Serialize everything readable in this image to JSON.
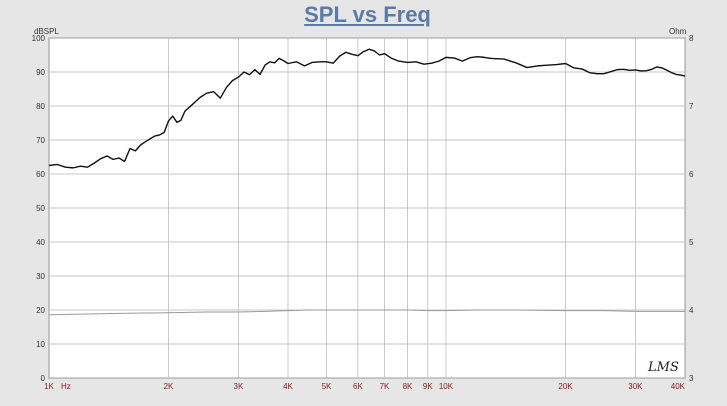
{
  "chart_data": {
    "type": "line",
    "title": "SPL vs Freq",
    "y_left_label": "dBSPL",
    "y_right_label": "Ohm",
    "x_unit": "Hz",
    "xlim": [
      1000,
      40000
    ],
    "ylim_left": [
      0,
      100
    ],
    "ylim_right": [
      3,
      8
    ],
    "x_scale": "log",
    "grid": true,
    "x_ticks": [
      {
        "v": 1000,
        "label": "1K"
      },
      {
        "v": 2000,
        "label": "2K"
      },
      {
        "v": 3000,
        "label": "3K"
      },
      {
        "v": 4000,
        "label": "4K"
      },
      {
        "v": 5000,
        "label": "5K"
      },
      {
        "v": 6000,
        "label": "6K"
      },
      {
        "v": 7000,
        "label": "7K"
      },
      {
        "v": 8000,
        "label": "8K"
      },
      {
        "v": 9000,
        "label": "9K"
      },
      {
        "v": 10000,
        "label": "10K"
      },
      {
        "v": 20000,
        "label": "20K"
      },
      {
        "v": 30000,
        "label": "30K"
      },
      {
        "v": 40000,
        "label": "40K"
      }
    ],
    "y_left_ticks": [
      0,
      10,
      20,
      30,
      40,
      50,
      60,
      70,
      80,
      90,
      100
    ],
    "y_right_ticks": [
      3,
      4,
      5,
      6,
      7,
      8
    ],
    "series": [
      {
        "axis": "left",
        "color": "#111111",
        "x": [
          1000,
          1050,
          1100,
          1150,
          1200,
          1250,
          1300,
          1350,
          1400,
          1450,
          1500,
          1550,
          1600,
          1650,
          1700,
          1750,
          1800,
          1850,
          1900,
          1950,
          2000,
          2050,
          2100,
          2150,
          2200,
          2300,
          2400,
          2500,
          2600,
          2700,
          2800,
          2900,
          3000,
          3100,
          3200,
          3300,
          3400,
          3500,
          3600,
          3700,
          3800,
          3900,
          4000,
          4200,
          4400,
          4600,
          4800,
          5000,
          5200,
          5400,
          5600,
          5800,
          6000,
          6200,
          6400,
          6600,
          6800,
          7000,
          7300,
          7600,
          8000,
          8400,
          8800,
          9200,
          9600,
          10000,
          10500,
          11000,
          11500,
          12000,
          12500,
          13000,
          14000,
          15000,
          16000,
          17000,
          18000,
          19000,
          20000,
          21000,
          22000,
          23000,
          24000,
          25000,
          26000,
          27000,
          28000,
          29000,
          30000,
          31000,
          32000,
          33000,
          34000,
          35000,
          36000,
          37000,
          38000,
          39000,
          40000
        ],
        "values": [
          62.5,
          62.8,
          62,
          61.8,
          62.3,
          62.0,
          63.2,
          64.5,
          65.3,
          64.3,
          64.7,
          63.7,
          67.5,
          66.8,
          68.5,
          69.5,
          70.4,
          71.2,
          71.5,
          72.2,
          75.6,
          77,
          75.2,
          75.8,
          78.5,
          80.5,
          82.5,
          83.8,
          84.2,
          82.3,
          85.5,
          87.5,
          88.5,
          90,
          89.2,
          90.7,
          89.3,
          92,
          93,
          92.7,
          94,
          93.3,
          92.5,
          93.0,
          91.8,
          92.8,
          93,
          93,
          92.6,
          94.7,
          95.8,
          95.2,
          94.8,
          96,
          96.7,
          96.2,
          95,
          95.4,
          94,
          93.2,
          92.8,
          93.0,
          92.3,
          92.6,
          93.2,
          94.3,
          94.1,
          93.2,
          94.2,
          94.5,
          94.3,
          94.0,
          93.8,
          92.7,
          91.3,
          91.8,
          92.0,
          92.2,
          92.5,
          91.2,
          90.9,
          89.8,
          89.5,
          89.5,
          90.1,
          90.7,
          90.8,
          90.5,
          90.6,
          90.3,
          90.4,
          90.8,
          91.5,
          91.2,
          90.5,
          89.8,
          89.3,
          89.1,
          88.8
        ]
      },
      {
        "axis": "right",
        "color": "#9a9a9a",
        "x": [
          1000,
          1500,
          2000,
          2500,
          3000,
          3500,
          4000,
          4500,
          5000,
          6000,
          7000,
          8000,
          9000,
          10000,
          12000,
          15000,
          20000,
          25000,
          30000,
          35000,
          40000
        ],
        "values": [
          3.93,
          3.95,
          3.96,
          3.97,
          3.97,
          3.98,
          3.99,
          4.0,
          4.0,
          4.0,
          4.0,
          4.0,
          3.99,
          3.99,
          4.0,
          4.0,
          3.99,
          3.99,
          3.98,
          3.98,
          3.98
        ]
      }
    ],
    "watermark": "LMS"
  }
}
